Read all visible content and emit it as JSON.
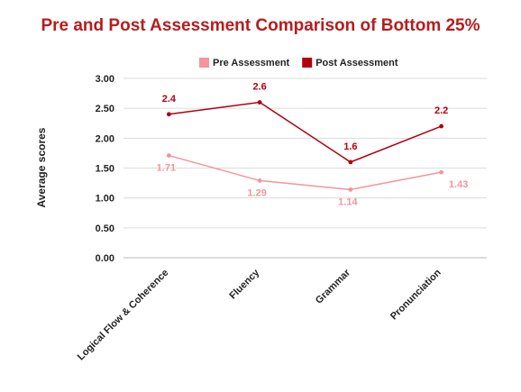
{
  "chart_data": {
    "type": "line",
    "title": "Pre and Post Assessment Comparison of Bottom 25%",
    "ylabel": "Average scores",
    "xlabel": "",
    "categories": [
      "Logical Flow & Coherence",
      "Fluency",
      "Grammar",
      "Pronunciation"
    ],
    "ylim": [
      0,
      3
    ],
    "yticks": [
      "0.00",
      "0.50",
      "1.00",
      "1.50",
      "2.00",
      "2.50",
      "3.00"
    ],
    "grid": true,
    "legend_position": "top",
    "series": [
      {
        "name": "Pre Assessment",
        "values": [
          1.71,
          1.29,
          1.14,
          1.43
        ],
        "labels": [
          "1.71",
          "1.29",
          "1.14",
          "1.43"
        ],
        "color": "#f4949c"
      },
      {
        "name": "Post Assessment",
        "values": [
          2.4,
          2.6,
          1.6,
          2.2
        ],
        "labels": [
          "2.4",
          "2.6",
          "1.6",
          "2.2"
        ],
        "color": "#b00010"
      }
    ],
    "title_color": "#b71c1c"
  }
}
